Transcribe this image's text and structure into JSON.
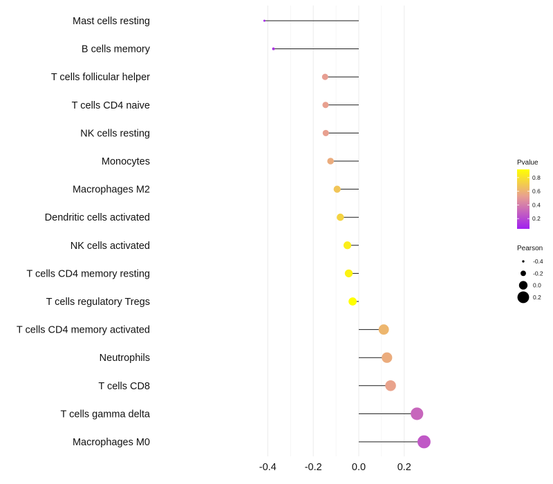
{
  "chart_data": {
    "type": "lollipop",
    "title": "",
    "xlabel": "",
    "ylabel": "",
    "xlim": [
      -0.44,
      0.31
    ],
    "xticks": [
      -0.4,
      -0.2,
      0.0,
      0.2
    ],
    "xtick_labels": [
      "-0.4",
      "-0.2",
      "0.0",
      "0.2"
    ],
    "categories": [
      "Mast cells resting",
      "B cells memory",
      "T cells follicular helper",
      "T cells CD4 naive",
      "NK cells resting",
      "Monocytes",
      "Macrophages M2",
      "Dendritic cells activated",
      "NK cells activated",
      "T cells CD4 memory resting",
      "T cells regulatory  Tregs ",
      "T cells CD4 memory activated",
      "Neutrophils",
      "T cells CD8",
      "T cells gamma delta",
      "Macrophages M0"
    ],
    "pearson": [
      -0.415,
      -0.375,
      -0.148,
      -0.146,
      -0.145,
      -0.124,
      -0.095,
      -0.081,
      -0.05,
      -0.044,
      -0.027,
      0.11,
      0.124,
      0.14,
      0.256,
      0.287
    ],
    "pvalue": [
      0.08,
      0.12,
      0.52,
      0.53,
      0.53,
      0.58,
      0.68,
      0.74,
      0.85,
      0.87,
      0.92,
      0.62,
      0.58,
      0.54,
      0.31,
      0.26
    ],
    "legend_pvalue": {
      "title": "Pvalue",
      "ticks": [
        0.8,
        0.6,
        0.4,
        0.2
      ],
      "tick_labels": [
        "0.8",
        "0.6",
        "0.4",
        "0.2"
      ],
      "range": [
        0.05,
        0.92
      ],
      "color_low": "#a020f0",
      "color_mid": "#e8a090",
      "color_high": "#ffff00"
    },
    "legend_pearson": {
      "title": "Pearson",
      "values": [
        -0.4,
        -0.2,
        0.0,
        0.2
      ],
      "labels": [
        "-0.4",
        "-0.2",
        "0.0",
        "0.2"
      ]
    },
    "grid": true,
    "legend_position": "right"
  }
}
